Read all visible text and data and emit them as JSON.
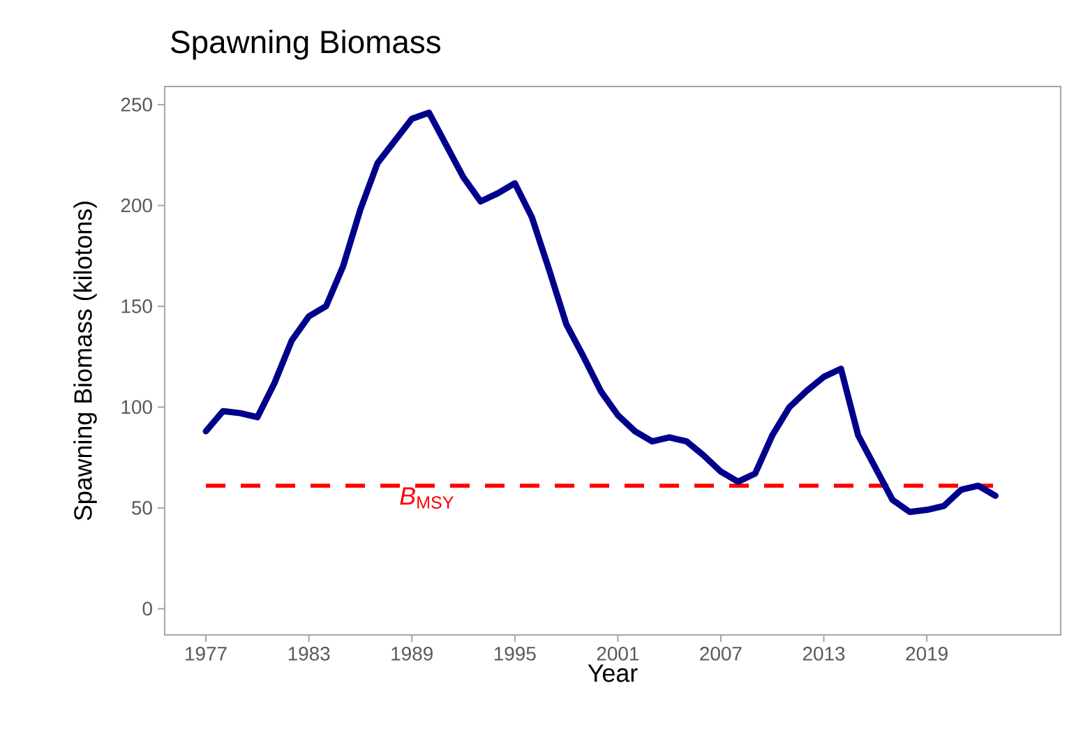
{
  "chart_data": {
    "type": "line",
    "title": "Spawning Biomass",
    "xlabel": "Year",
    "ylabel": "Spawning Biomass (kilotons)",
    "x": [
      1977,
      1978,
      1979,
      1980,
      1981,
      1982,
      1983,
      1984,
      1985,
      1986,
      1987,
      1988,
      1989,
      1990,
      1991,
      1992,
      1993,
      1994,
      1995,
      1996,
      1997,
      1998,
      1999,
      2000,
      2001,
      2002,
      2003,
      2004,
      2005,
      2006,
      2007,
      2008,
      2009,
      2010,
      2011,
      2012,
      2013,
      2014,
      2015,
      2016,
      2017,
      2018,
      2019,
      2020,
      2021,
      2022,
      2023
    ],
    "series": [
      {
        "color": "#00008b",
        "values": [
          88,
          98,
          97,
          95,
          112,
          133,
          145,
          150,
          170,
          198,
          221,
          232,
          243,
          246,
          230,
          214,
          202,
          206,
          211,
          194,
          168,
          141,
          125,
          108,
          96,
          88,
          83,
          85,
          83,
          76,
          68,
          63,
          67,
          86,
          100,
          108,
          115,
          119,
          86,
          70,
          54,
          48,
          49,
          51,
          59,
          61,
          56
        ]
      }
    ],
    "xlim": [
      1974.6,
      2026.8
    ],
    "ylim": [
      -13,
      259
    ],
    "xticks": [
      1977,
      1983,
      1989,
      1995,
      2001,
      2007,
      2013,
      2019
    ],
    "yticks": [
      0,
      50,
      100,
      150,
      200,
      250
    ],
    "grid": false,
    "marker": "none",
    "line_style": "solid",
    "ref_lines": [
      {
        "axis": "y",
        "value": 61,
        "label": "*B*$_{MSY}$",
        "color": "#ff0000",
        "line_style": "dashed"
      }
    ]
  }
}
